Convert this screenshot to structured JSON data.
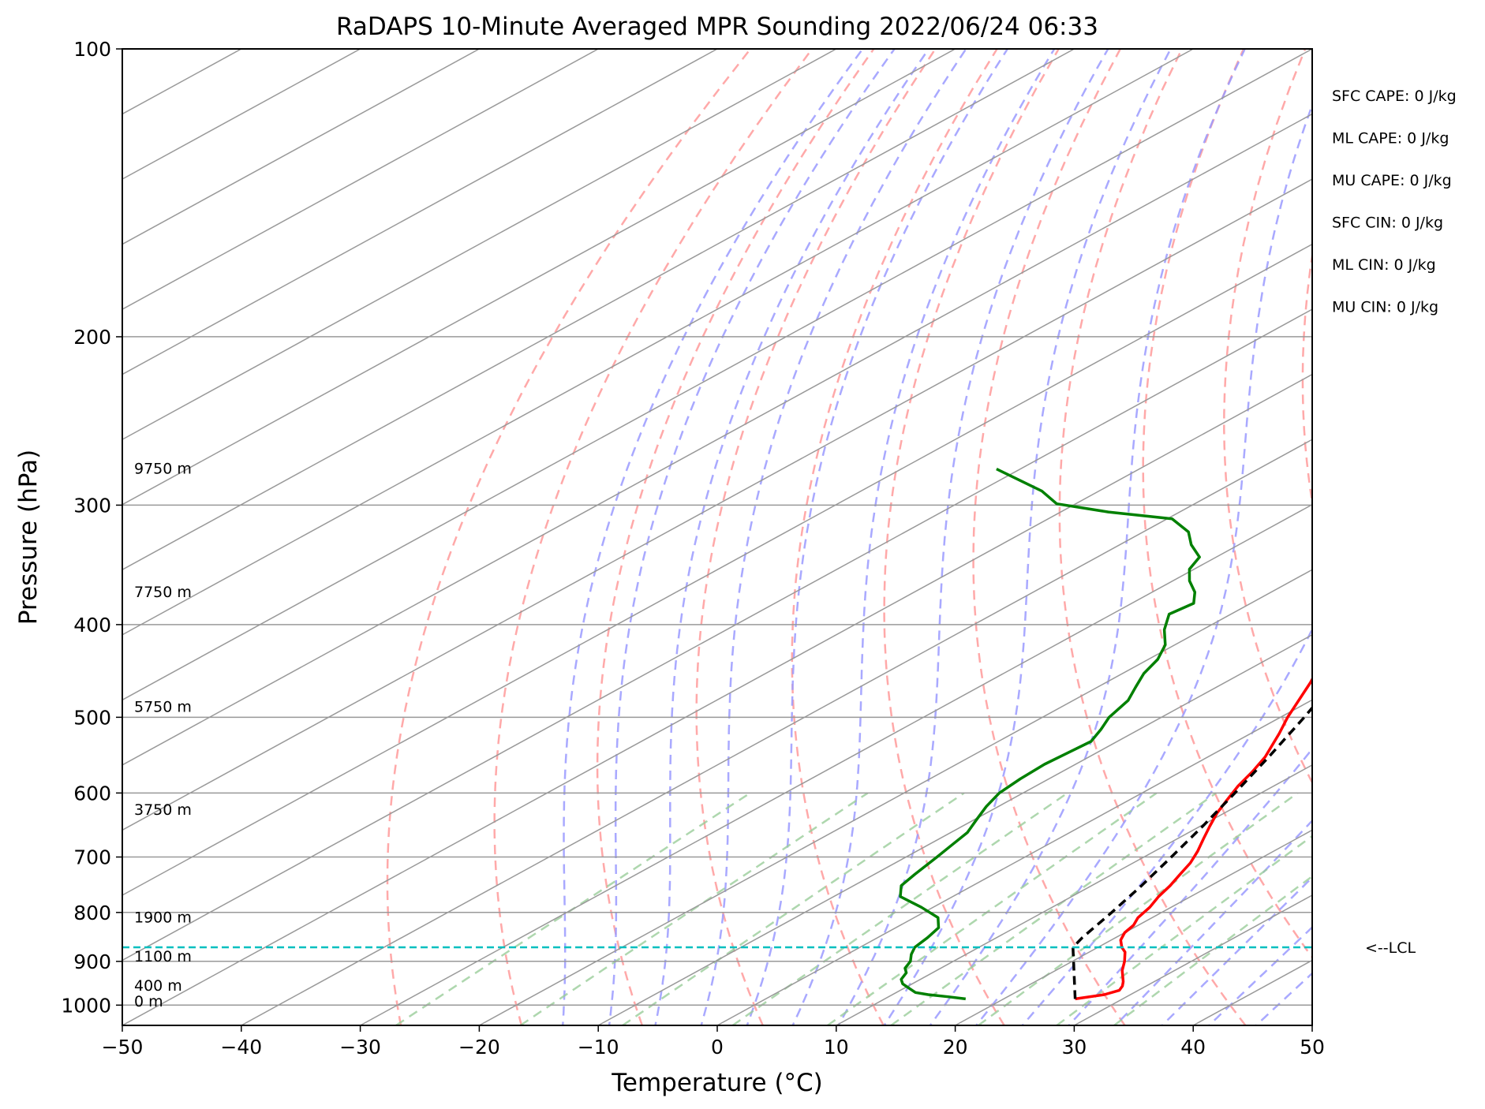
{
  "chart_data": {
    "type": "line",
    "title": "RaDAPS 10-Minute Averaged MPR Sounding 2022/06/24 06:33",
    "xlabel": "Temperature (°C)",
    "ylabel": "Pressure (hPa)",
    "xlim": [
      -50,
      50
    ],
    "ylim": [
      1050,
      100
    ],
    "y_scale": "log",
    "skew": true,
    "x_ticks": [
      "−50",
      "−40",
      "−30",
      "−20",
      "−10",
      "0",
      "10",
      "20",
      "30",
      "40",
      "50"
    ],
    "x_tick_values": [
      -50,
      -40,
      -30,
      -20,
      -10,
      0,
      10,
      20,
      30,
      40,
      50
    ],
    "y_ticks": [
      "100",
      "200",
      "300",
      "400",
      "500",
      "600",
      "700",
      "800",
      "900",
      "1000"
    ],
    "y_tick_values": [
      100,
      200,
      300,
      400,
      500,
      600,
      700,
      800,
      900,
      1000
    ],
    "grid": true,
    "series": [
      {
        "role": "temperature",
        "color": "#ff0000",
        "points": [
          [
            985,
            26
          ],
          [
            975,
            27.8
          ],
          [
            965,
            28.4
          ],
          [
            955,
            28
          ],
          [
            945,
            27.4
          ],
          [
            920,
            25.6
          ],
          [
            900,
            24.4
          ],
          [
            880,
            23
          ],
          [
            870,
            22
          ],
          [
            855,
            20.8
          ],
          [
            840,
            20
          ],
          [
            825,
            19.6
          ],
          [
            810,
            18.8
          ],
          [
            790,
            18.2
          ],
          [
            770,
            17.3
          ],
          [
            750,
            16.6
          ],
          [
            730,
            15.7
          ],
          [
            710,
            14.8
          ],
          [
            690,
            13.6
          ],
          [
            670,
            12.2
          ],
          [
            650,
            10.8
          ],
          [
            630,
            9.4
          ],
          [
            610,
            8.2
          ],
          [
            590,
            7
          ],
          [
            570,
            6
          ],
          [
            550,
            4.8
          ],
          [
            520,
            2.4
          ],
          [
            500,
            0.6
          ],
          [
            460,
            -2.8
          ],
          [
            430,
            -5.8
          ],
          [
            400,
            -9
          ],
          [
            380,
            -11.4
          ],
          [
            360,
            -14
          ],
          [
            340,
            -16.8
          ],
          [
            320,
            -19.6
          ],
          [
            300,
            -22.2
          ],
          [
            285,
            -24.2
          ],
          [
            275,
            -25.6
          ]
        ]
      },
      {
        "role": "dewpoint",
        "color": "#008000",
        "points": [
          [
            985,
            16.8
          ],
          [
            980,
            15
          ],
          [
            975,
            13
          ],
          [
            970,
            11.6
          ],
          [
            960,
            10.4
          ],
          [
            950,
            9.2
          ],
          [
            940,
            8.4
          ],
          [
            925,
            7.8
          ],
          [
            915,
            7
          ],
          [
            900,
            6.4
          ],
          [
            885,
            5.4
          ],
          [
            870,
            4.6
          ],
          [
            850,
            4.2
          ],
          [
            830,
            3.6
          ],
          [
            810,
            2
          ],
          [
            790,
            -1
          ],
          [
            770,
            -4.4
          ],
          [
            750,
            -6
          ],
          [
            730,
            -6.6
          ],
          [
            700,
            -7.4
          ],
          [
            680,
            -8
          ],
          [
            660,
            -8.6
          ],
          [
            640,
            -9.8
          ],
          [
            620,
            -11
          ],
          [
            600,
            -12
          ],
          [
            580,
            -12.4
          ],
          [
            560,
            -12.6
          ],
          [
            545,
            -12.4
          ],
          [
            530,
            -12.2
          ],
          [
            515,
            -13.2
          ],
          [
            500,
            -14.4
          ],
          [
            480,
            -15.4
          ],
          [
            465,
            -16.8
          ],
          [
            450,
            -18.2
          ],
          [
            435,
            -19.2
          ],
          [
            420,
            -20.8
          ],
          [
            405,
            -23.2
          ],
          [
            390,
            -25.2
          ],
          [
            380,
            -24.8
          ],
          [
            370,
            -26.4
          ],
          [
            360,
            -28.6
          ],
          [
            350,
            -30.4
          ],
          [
            340,
            -31.4
          ],
          [
            330,
            -34
          ],
          [
            320,
            -36.2
          ],
          [
            310,
            -39.6
          ],
          [
            305,
            -46
          ],
          [
            299,
            -51.6
          ],
          [
            290,
            -54.8
          ],
          [
            275,
            -62
          ]
        ]
      },
      {
        "role": "parcel",
        "color": "#000000",
        "points": [
          [
            985,
            26
          ],
          [
            870,
            17.9
          ],
          [
            850,
            17.2
          ],
          [
            800,
            15.8
          ],
          [
            750,
            14.2
          ],
          [
            700,
            12.3
          ],
          [
            650,
            10.2
          ],
          [
            600,
            7.8
          ],
          [
            550,
            5.1
          ],
          [
            500,
            2
          ],
          [
            450,
            -1.6
          ],
          [
            400,
            -5.8
          ],
          [
            350,
            -10.9
          ],
          [
            300,
            -17.2
          ],
          [
            275,
            -20.9
          ]
        ]
      }
    ],
    "lcl_pressure": 870,
    "lcl_label": "<--LCL",
    "height_labels": [
      {
        "label": "9750 m",
        "p": 275
      },
      {
        "label": "7750 m",
        "p": 370
      },
      {
        "label": "5750 m",
        "p": 488
      },
      {
        "label": "3750 m",
        "p": 625
      },
      {
        "label": "1900 m",
        "p": 810
      },
      {
        "label": "1100 m",
        "p": 890
      },
      {
        "label": "400 m",
        "p": 955
      },
      {
        "label": "0 m",
        "p": 992
      }
    ],
    "parameters": [
      "SFC CAPE: 0 J/kg",
      "ML CAPE: 0 J/kg",
      "MU CAPE: 0 J/kg",
      "SFC CIN: 0 J/kg",
      "ML CIN: 0 J/kg",
      "MU CIN: 0 J/kg"
    ],
    "colors": {
      "dry_adiabat": "#ff9a9a",
      "moist_adiabat": "#9a9aff",
      "mixing_ratio": "#9acd9a",
      "isotherm": "#999999",
      "lcl": "#00bfbf"
    }
  }
}
